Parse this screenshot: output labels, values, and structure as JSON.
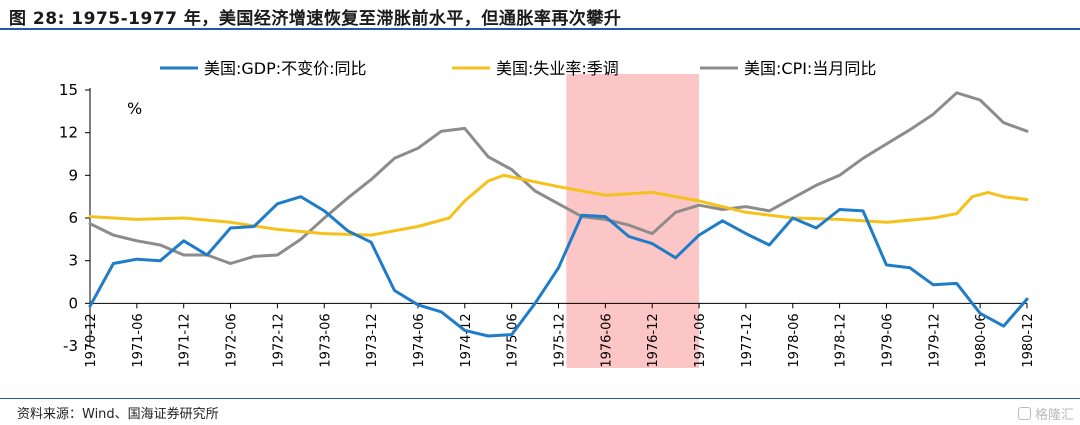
{
  "title": "图 28: 1975-1977 年，美国经济增速恢复至滞胀前水平，但通胀率再次攀升",
  "source": "资料来源：Wind、国海证券研究所",
  "watermark": "格隆汇",
  "colors": {
    "gdp": "#1f7cc8",
    "unemployment": "#f5c21b",
    "cpi": "#8c8c8c",
    "highlight": "#fdc6c6"
  },
  "chart_data": {
    "type": "line",
    "unit": "%",
    "ylim": [
      -3,
      15
    ],
    "yticks": [
      15,
      12,
      9,
      6,
      3,
      0,
      -3
    ],
    "xrange": [
      "1970-12",
      "1980-12"
    ],
    "xticks": [
      "1970-12",
      "1971-06",
      "1971-12",
      "1972-06",
      "1972-12",
      "1973-06",
      "1973-12",
      "1974-06",
      "1974-12",
      "1975-06",
      "1975-12",
      "1976-06",
      "1976-12",
      "1977-06",
      "1977-12",
      "1978-06",
      "1978-12",
      "1979-06",
      "1979-12",
      "1980-06",
      "1980-12"
    ],
    "highlight_range": [
      "1976-01",
      "1977-06"
    ],
    "legend_position": "top",
    "series": [
      {
        "name": "美国:GDP:不变价:同比",
        "color_key": "gdp",
        "points": [
          [
            "1970-12",
            -0.2
          ],
          [
            "1971-03",
            2.8
          ],
          [
            "1971-06",
            3.1
          ],
          [
            "1971-09",
            3.0
          ],
          [
            "1971-12",
            4.4
          ],
          [
            "1972-03",
            3.4
          ],
          [
            "1972-06",
            5.3
          ],
          [
            "1972-09",
            5.4
          ],
          [
            "1972-12",
            7.0
          ],
          [
            "1973-03",
            7.5
          ],
          [
            "1973-06",
            6.5
          ],
          [
            "1973-09",
            5.1
          ],
          [
            "1973-12",
            4.3
          ],
          [
            "1974-03",
            0.9
          ],
          [
            "1974-06",
            -0.1
          ],
          [
            "1974-09",
            -0.6
          ],
          [
            "1974-12",
            -1.9
          ],
          [
            "1975-03",
            -2.3
          ],
          [
            "1975-06",
            -2.2
          ],
          [
            "1975-09",
            0.0
          ],
          [
            "1975-12",
            2.5
          ],
          [
            "1976-03",
            6.2
          ],
          [
            "1976-06",
            6.1
          ],
          [
            "1976-09",
            4.7
          ],
          [
            "1976-12",
            4.2
          ],
          [
            "1977-03",
            3.2
          ],
          [
            "1977-06",
            4.8
          ],
          [
            "1977-09",
            5.8
          ],
          [
            "1977-12",
            4.9
          ],
          [
            "1978-03",
            4.1
          ],
          [
            "1978-06",
            6.0
          ],
          [
            "1978-09",
            5.3
          ],
          [
            "1978-12",
            6.6
          ],
          [
            "1979-03",
            6.5
          ],
          [
            "1979-06",
            2.7
          ],
          [
            "1979-09",
            2.5
          ],
          [
            "1979-12",
            1.3
          ],
          [
            "1980-03",
            1.4
          ],
          [
            "1980-06",
            -0.7
          ],
          [
            "1980-09",
            -1.6
          ],
          [
            "1980-12",
            0.3
          ]
        ]
      },
      {
        "name": "美国:失业率:季调",
        "color_key": "unemployment",
        "points": [
          [
            "1970-12",
            6.1
          ],
          [
            "1971-06",
            5.9
          ],
          [
            "1971-12",
            6.0
          ],
          [
            "1972-06",
            5.7
          ],
          [
            "1972-12",
            5.2
          ],
          [
            "1973-06",
            4.9
          ],
          [
            "1973-12",
            4.8
          ],
          [
            "1974-06",
            5.4
          ],
          [
            "1974-10",
            6.0
          ],
          [
            "1974-12",
            7.2
          ],
          [
            "1975-03",
            8.6
          ],
          [
            "1975-05",
            9.0
          ],
          [
            "1975-12",
            8.2
          ],
          [
            "1976-06",
            7.6
          ],
          [
            "1976-12",
            7.8
          ],
          [
            "1977-06",
            7.2
          ],
          [
            "1977-12",
            6.4
          ],
          [
            "1978-06",
            6.0
          ],
          [
            "1978-12",
            5.9
          ],
          [
            "1979-06",
            5.7
          ],
          [
            "1979-12",
            6.0
          ],
          [
            "1980-03",
            6.3
          ],
          [
            "1980-05",
            7.5
          ],
          [
            "1980-07",
            7.8
          ],
          [
            "1980-09",
            7.5
          ],
          [
            "1980-12",
            7.3
          ]
        ]
      },
      {
        "name": "美国:CPI:当月同比",
        "color_key": "cpi",
        "points": [
          [
            "1970-12",
            5.6
          ],
          [
            "1971-03",
            4.8
          ],
          [
            "1971-06",
            4.4
          ],
          [
            "1971-09",
            4.1
          ],
          [
            "1971-12",
            3.4
          ],
          [
            "1972-03",
            3.4
          ],
          [
            "1972-06",
            2.8
          ],
          [
            "1972-09",
            3.3
          ],
          [
            "1972-12",
            3.4
          ],
          [
            "1973-03",
            4.5
          ],
          [
            "1973-06",
            6.0
          ],
          [
            "1973-09",
            7.4
          ],
          [
            "1973-12",
            8.7
          ],
          [
            "1974-03",
            10.2
          ],
          [
            "1974-06",
            10.9
          ],
          [
            "1974-09",
            12.1
          ],
          [
            "1974-12",
            12.3
          ],
          [
            "1975-03",
            10.3
          ],
          [
            "1975-06",
            9.4
          ],
          [
            "1975-09",
            7.9
          ],
          [
            "1975-12",
            7.0
          ],
          [
            "1976-03",
            6.1
          ],
          [
            "1976-06",
            5.9
          ],
          [
            "1976-09",
            5.5
          ],
          [
            "1976-12",
            4.9
          ],
          [
            "1977-03",
            6.4
          ],
          [
            "1977-06",
            6.9
          ],
          [
            "1977-09",
            6.6
          ],
          [
            "1977-12",
            6.8
          ],
          [
            "1978-03",
            6.5
          ],
          [
            "1978-06",
            7.4
          ],
          [
            "1978-09",
            8.3
          ],
          [
            "1978-12",
            9.0
          ],
          [
            "1979-03",
            10.2
          ],
          [
            "1979-06",
            11.2
          ],
          [
            "1979-09",
            12.2
          ],
          [
            "1979-12",
            13.3
          ],
          [
            "1980-03",
            14.8
          ],
          [
            "1980-06",
            14.3
          ],
          [
            "1980-09",
            12.7
          ],
          [
            "1980-12",
            12.1
          ]
        ]
      }
    ]
  }
}
